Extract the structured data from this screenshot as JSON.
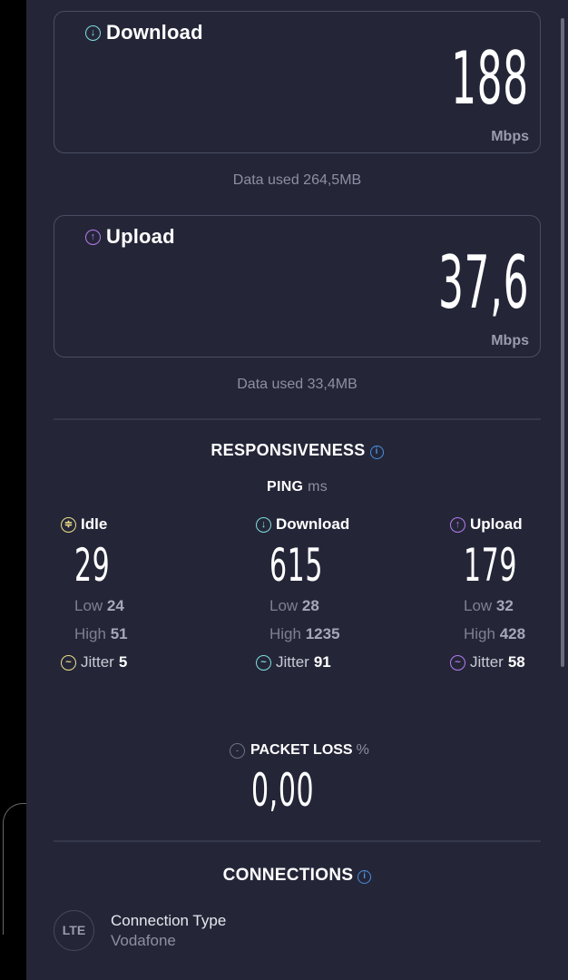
{
  "download": {
    "title": "Download",
    "value": "188",
    "unit": "Mbps",
    "data_used": "Data used 264,5MB",
    "color": "#7fe0e0"
  },
  "upload": {
    "title": "Upload",
    "value": "37,6",
    "unit": "Mbps",
    "data_used": "Data used 33,4MB",
    "color": "#b57cf0"
  },
  "responsiveness": {
    "title": "RESPONSIVENESS",
    "ping_label": "PING",
    "ping_unit": "ms",
    "columns": [
      {
        "title": "Idle",
        "value": "29",
        "low_label": "Low",
        "low": "24",
        "high_label": "High",
        "high": "51",
        "jitter_label": "Jitter",
        "jitter": "5",
        "color": "#f0e08a",
        "icon": "idle-icon"
      },
      {
        "title": "Download",
        "value": "615",
        "low_label": "Low",
        "low": "28",
        "high_label": "High",
        "high": "1235",
        "jitter_label": "Jitter",
        "jitter": "91",
        "color": "#7fe0e0",
        "icon": "download-arrow-icon"
      },
      {
        "title": "Upload",
        "value": "179",
        "low_label": "Low",
        "low": "32",
        "high_label": "High",
        "high": "428",
        "jitter_label": "Jitter",
        "jitter": "58",
        "color": "#b57cf0",
        "icon": "upload-arrow-icon"
      }
    ]
  },
  "packet_loss": {
    "title": "PACKET LOSS",
    "unit": "%",
    "value": "0,00"
  },
  "connections": {
    "title": "CONNECTIONS",
    "type_badge": "LTE",
    "type_label": "Connection Type",
    "provider": "Vodafone"
  }
}
